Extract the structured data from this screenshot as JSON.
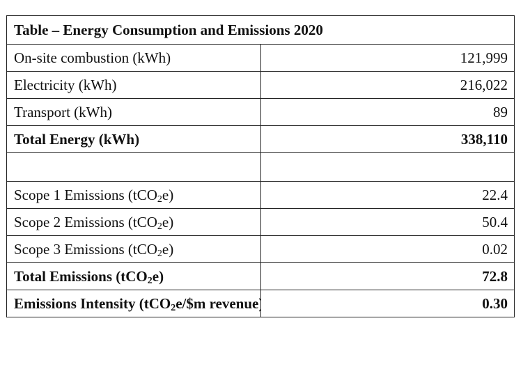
{
  "table": {
    "title": "Table – Energy Consumption and Emissions 2020",
    "rows": [
      {
        "pre": "On-site combustion (kWh)",
        "sub": "",
        "post": "",
        "value": "121,999",
        "bold": false
      },
      {
        "pre": "Electricity (kWh)",
        "sub": "",
        "post": "",
        "value": "216,022",
        "bold": false
      },
      {
        "pre": "Transport (kWh)",
        "sub": "",
        "post": "",
        "value": "89",
        "bold": false
      },
      {
        "pre": "Total Energy (kWh)",
        "sub": "",
        "post": "",
        "value": "338,110",
        "bold": true
      },
      {
        "pre": "",
        "sub": "",
        "post": "",
        "value": "",
        "bold": false
      },
      {
        "pre": "Scope 1 Emissions (tCO",
        "sub": "2",
        "post": "e)",
        "value": "22.4",
        "bold": false
      },
      {
        "pre": "Scope 2 Emissions (tCO",
        "sub": "2",
        "post": "e)",
        "value": "50.4",
        "bold": false
      },
      {
        "pre": "Scope 3 Emissions (tCO",
        "sub": "2",
        "post": "e)",
        "value": "0.02",
        "bold": false
      },
      {
        "pre": "Total Emissions (tCO",
        "sub": "2",
        "post": "e)",
        "value": "72.8",
        "bold": true
      },
      {
        "pre": "Emissions Intensity (tCO",
        "sub": "2",
        "post": "e/$m revenue)",
        "value": "0.30",
        "bold": true
      }
    ]
  }
}
